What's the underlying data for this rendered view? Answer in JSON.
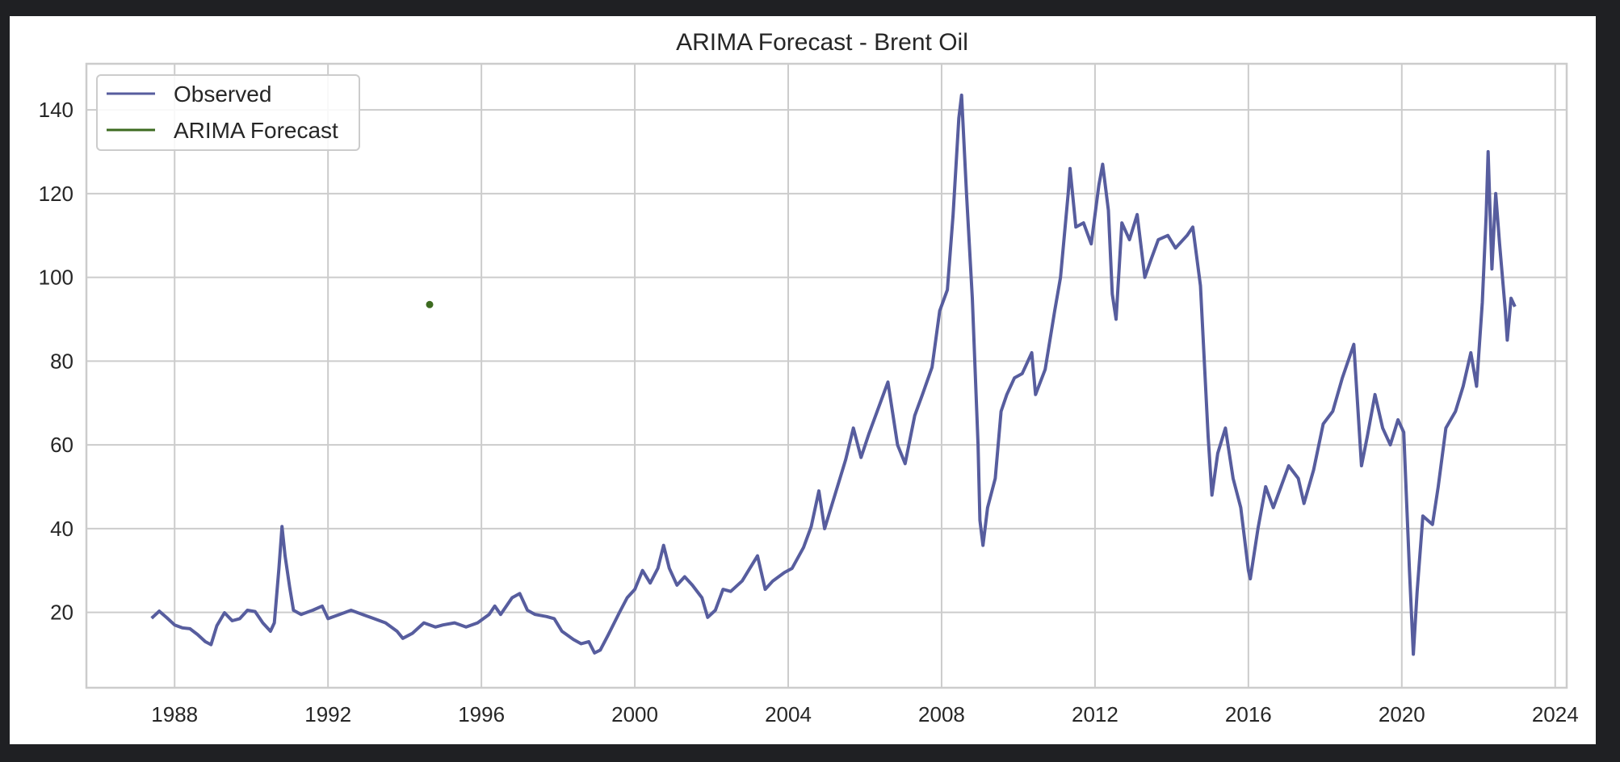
{
  "chart_data": {
    "type": "line",
    "title": "ARIMA Forecast - Brent Oil",
    "xlabel": "",
    "ylabel": "",
    "xlim": [
      1985.7,
      2024.3
    ],
    "ylim": [
      2,
      151
    ],
    "x_ticks": [
      "1988",
      "1992",
      "1996",
      "2000",
      "2004",
      "2008",
      "2012",
      "2016",
      "2020",
      "2024"
    ],
    "y_ticks": [
      "20",
      "40",
      "60",
      "80",
      "100",
      "120",
      "140"
    ],
    "grid": true,
    "legend_position": "top-left",
    "series": [
      {
        "name": "Observed",
        "color": "#575d9e",
        "points": [
          [
            1987.4,
            18.6
          ],
          [
            1987.6,
            20.3
          ],
          [
            1987.8,
            18.7
          ],
          [
            1988.0,
            17.0
          ],
          [
            1988.2,
            16.3
          ],
          [
            1988.4,
            16.1
          ],
          [
            1988.6,
            14.7
          ],
          [
            1988.8,
            13.0
          ],
          [
            1988.95,
            12.3
          ],
          [
            1989.1,
            16.8
          ],
          [
            1989.3,
            19.9
          ],
          [
            1989.5,
            18.0
          ],
          [
            1989.7,
            18.5
          ],
          [
            1989.9,
            20.5
          ],
          [
            1990.1,
            20.2
          ],
          [
            1990.3,
            17.5
          ],
          [
            1990.5,
            15.5
          ],
          [
            1990.6,
            17.5
          ],
          [
            1990.72,
            30.5
          ],
          [
            1990.8,
            40.5
          ],
          [
            1990.88,
            33.5
          ],
          [
            1991.0,
            26.0
          ],
          [
            1991.1,
            20.5
          ],
          [
            1991.3,
            19.5
          ],
          [
            1991.6,
            20.5
          ],
          [
            1991.85,
            21.5
          ],
          [
            1992.0,
            18.5
          ],
          [
            1992.3,
            19.5
          ],
          [
            1992.6,
            20.5
          ],
          [
            1992.9,
            19.5
          ],
          [
            1993.2,
            18.5
          ],
          [
            1993.5,
            17.5
          ],
          [
            1993.8,
            15.5
          ],
          [
            1993.95,
            13.8
          ],
          [
            1994.2,
            15.0
          ],
          [
            1994.5,
            17.5
          ],
          [
            1994.8,
            16.5
          ],
          [
            1995.0,
            17.0
          ],
          [
            1995.3,
            17.5
          ],
          [
            1995.6,
            16.5
          ],
          [
            1995.9,
            17.5
          ],
          [
            1996.2,
            19.5
          ],
          [
            1996.35,
            21.5
          ],
          [
            1996.5,
            19.5
          ],
          [
            1996.8,
            23.5
          ],
          [
            1997.0,
            24.5
          ],
          [
            1997.2,
            20.5
          ],
          [
            1997.4,
            19.5
          ],
          [
            1997.7,
            19.0
          ],
          [
            1997.9,
            18.5
          ],
          [
            1998.1,
            15.5
          ],
          [
            1998.4,
            13.5
          ],
          [
            1998.6,
            12.5
          ],
          [
            1998.8,
            13.0
          ],
          [
            1998.95,
            10.3
          ],
          [
            1999.1,
            11.0
          ],
          [
            1999.3,
            14.5
          ],
          [
            1999.6,
            20.0
          ],
          [
            1999.8,
            23.5
          ],
          [
            2000.0,
            25.5
          ],
          [
            2000.2,
            30.0
          ],
          [
            2000.4,
            27.0
          ],
          [
            2000.6,
            30.5
          ],
          [
            2000.75,
            36.0
          ],
          [
            2000.9,
            30.5
          ],
          [
            2001.1,
            26.5
          ],
          [
            2001.3,
            28.5
          ],
          [
            2001.5,
            26.5
          ],
          [
            2001.75,
            23.5
          ],
          [
            2001.9,
            18.8
          ],
          [
            2002.1,
            20.5
          ],
          [
            2002.3,
            25.5
          ],
          [
            2002.5,
            25.0
          ],
          [
            2002.8,
            27.5
          ],
          [
            2003.0,
            30.5
          ],
          [
            2003.2,
            33.5
          ],
          [
            2003.4,
            25.5
          ],
          [
            2003.6,
            27.5
          ],
          [
            2003.9,
            29.5
          ],
          [
            2004.1,
            30.5
          ],
          [
            2004.4,
            35.5
          ],
          [
            2004.6,
            40.5
          ],
          [
            2004.8,
            49.0
          ],
          [
            2004.95,
            40.0
          ],
          [
            2005.2,
            47.5
          ],
          [
            2005.5,
            56.5
          ],
          [
            2005.7,
            64.0
          ],
          [
            2005.9,
            57.0
          ],
          [
            2006.1,
            62.5
          ],
          [
            2006.4,
            70.0
          ],
          [
            2006.6,
            75.0
          ],
          [
            2006.85,
            60.0
          ],
          [
            2007.05,
            55.5
          ],
          [
            2007.3,
            67.0
          ],
          [
            2007.5,
            72.0
          ],
          [
            2007.75,
            78.5
          ],
          [
            2007.95,
            92.0
          ],
          [
            2008.15,
            97.0
          ],
          [
            2008.3,
            115.0
          ],
          [
            2008.45,
            138.0
          ],
          [
            2008.52,
            143.5
          ],
          [
            2008.65,
            120.0
          ],
          [
            2008.8,
            95.0
          ],
          [
            2008.95,
            60.0
          ],
          [
            2009.0,
            42.0
          ],
          [
            2009.08,
            36.0
          ],
          [
            2009.2,
            45.0
          ],
          [
            2009.4,
            52.0
          ],
          [
            2009.55,
            68.0
          ],
          [
            2009.7,
            72.0
          ],
          [
            2009.9,
            76.0
          ],
          [
            2010.1,
            77.0
          ],
          [
            2010.35,
            82.0
          ],
          [
            2010.45,
            72.0
          ],
          [
            2010.7,
            78.0
          ],
          [
            2010.95,
            92.0
          ],
          [
            2011.1,
            100.0
          ],
          [
            2011.3,
            120.0
          ],
          [
            2011.35,
            126.0
          ],
          [
            2011.5,
            112.0
          ],
          [
            2011.7,
            113.0
          ],
          [
            2011.9,
            108.0
          ],
          [
            2012.1,
            122.0
          ],
          [
            2012.2,
            127.0
          ],
          [
            2012.35,
            116.0
          ],
          [
            2012.45,
            96.0
          ],
          [
            2012.55,
            90.0
          ],
          [
            2012.7,
            113.0
          ],
          [
            2012.9,
            109.0
          ],
          [
            2013.1,
            115.0
          ],
          [
            2013.3,
            100.0
          ],
          [
            2013.45,
            104.0
          ],
          [
            2013.65,
            109.0
          ],
          [
            2013.9,
            110.0
          ],
          [
            2014.1,
            107.0
          ],
          [
            2014.4,
            110.0
          ],
          [
            2014.55,
            112.0
          ],
          [
            2014.75,
            98.0
          ],
          [
            2014.95,
            62.0
          ],
          [
            2015.05,
            48.0
          ],
          [
            2015.2,
            58.0
          ],
          [
            2015.4,
            64.0
          ],
          [
            2015.6,
            52.0
          ],
          [
            2015.8,
            45.0
          ],
          [
            2016.0,
            30.0
          ],
          [
            2016.05,
            28.0
          ],
          [
            2016.25,
            40.0
          ],
          [
            2016.45,
            50.0
          ],
          [
            2016.65,
            45.0
          ],
          [
            2016.85,
            50.0
          ],
          [
            2017.05,
            55.0
          ],
          [
            2017.3,
            52.0
          ],
          [
            2017.45,
            46.0
          ],
          [
            2017.7,
            54.0
          ],
          [
            2017.95,
            65.0
          ],
          [
            2018.2,
            68.0
          ],
          [
            2018.45,
            76.0
          ],
          [
            2018.75,
            84.0
          ],
          [
            2018.95,
            55.0
          ],
          [
            2019.1,
            62.0
          ],
          [
            2019.3,
            72.0
          ],
          [
            2019.5,
            64.0
          ],
          [
            2019.7,
            60.0
          ],
          [
            2019.9,
            66.0
          ],
          [
            2020.05,
            63.0
          ],
          [
            2020.2,
            30.0
          ],
          [
            2020.3,
            10.0
          ],
          [
            2020.4,
            25.0
          ],
          [
            2020.55,
            43.0
          ],
          [
            2020.8,
            41.0
          ],
          [
            2020.95,
            50.0
          ],
          [
            2021.15,
            64.0
          ],
          [
            2021.4,
            68.0
          ],
          [
            2021.6,
            74.0
          ],
          [
            2021.8,
            82.0
          ],
          [
            2021.95,
            74.0
          ],
          [
            2022.1,
            94.0
          ],
          [
            2022.2,
            115.0
          ],
          [
            2022.25,
            130.0
          ],
          [
            2022.35,
            102.0
          ],
          [
            2022.45,
            120.0
          ],
          [
            2022.55,
            108.0
          ],
          [
            2022.7,
            92.0
          ],
          [
            2022.75,
            85.0
          ],
          [
            2022.85,
            95.0
          ],
          [
            2022.95,
            93.0
          ]
        ]
      },
      {
        "name": "ARIMA Forecast",
        "color": "#3d6b20",
        "points": [
          [
            1994.65,
            93.5
          ]
        ]
      }
    ]
  }
}
